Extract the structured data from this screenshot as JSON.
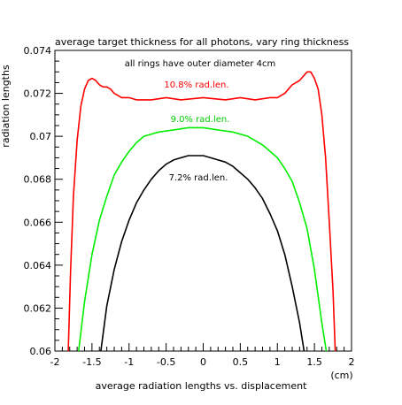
{
  "chart_data": {
    "type": "line",
    "title": "average target thickness for all photons, vary ring thickness",
    "xlabel": "average radiation lengths vs. displacement",
    "ylabel": "radiation lengths",
    "x_unit": "(cm)",
    "xlim": [
      -2,
      2
    ],
    "ylim": [
      0.06,
      0.074
    ],
    "x_ticks": [
      "-2",
      "-1.5",
      "-1",
      "-0.5",
      "0",
      "0.5",
      "1",
      "1.5",
      "2"
    ],
    "y_ticks": [
      "0.06",
      "0.062",
      "0.064",
      "0.066",
      "0.068",
      "0.07",
      "0.072",
      "0.074"
    ],
    "grid": false,
    "annotations": [
      "all rings have outer diameter 4cm"
    ],
    "series": [
      {
        "name": "10.8% rad.len.",
        "color": "#ff0000",
        "points": [
          [
            -1.82,
            0.06
          ],
          [
            -1.79,
            0.0636
          ],
          [
            -1.75,
            0.0672
          ],
          [
            -1.7,
            0.0698
          ],
          [
            -1.65,
            0.0714
          ],
          [
            -1.6,
            0.0722
          ],
          [
            -1.55,
            0.0726
          ],
          [
            -1.5,
            0.0727
          ],
          [
            -1.45,
            0.0726
          ],
          [
            -1.4,
            0.0724
          ],
          [
            -1.35,
            0.0723
          ],
          [
            -1.3,
            0.0723
          ],
          [
            -1.25,
            0.0722
          ],
          [
            -1.2,
            0.072
          ],
          [
            -1.1,
            0.0718
          ],
          [
            -1.0,
            0.0718
          ],
          [
            -0.9,
            0.0717
          ],
          [
            -0.7,
            0.0717
          ],
          [
            -0.5,
            0.0718
          ],
          [
            -0.3,
            0.0717
          ],
          [
            0.0,
            0.0718
          ],
          [
            0.3,
            0.0717
          ],
          [
            0.5,
            0.0718
          ],
          [
            0.7,
            0.0717
          ],
          [
            0.9,
            0.0718
          ],
          [
            1.0,
            0.0718
          ],
          [
            1.1,
            0.072
          ],
          [
            1.15,
            0.0722
          ],
          [
            1.2,
            0.0724
          ],
          [
            1.25,
            0.0725
          ],
          [
            1.3,
            0.0726
          ],
          [
            1.35,
            0.0728
          ],
          [
            1.4,
            0.073
          ],
          [
            1.45,
            0.073
          ],
          [
            1.5,
            0.0727
          ],
          [
            1.55,
            0.0722
          ],
          [
            1.6,
            0.071
          ],
          [
            1.65,
            0.069
          ],
          [
            1.7,
            0.066
          ],
          [
            1.75,
            0.0628
          ],
          [
            1.78,
            0.06
          ]
        ]
      },
      {
        "name": "9.0% rad.len.",
        "color": "#00ee00",
        "points": [
          [
            -1.68,
            0.06
          ],
          [
            -1.6,
            0.0623
          ],
          [
            -1.5,
            0.0645
          ],
          [
            -1.4,
            0.0661
          ],
          [
            -1.3,
            0.0672
          ],
          [
            -1.2,
            0.0682
          ],
          [
            -1.1,
            0.0688
          ],
          [
            -1.0,
            0.0693
          ],
          [
            -0.9,
            0.0697
          ],
          [
            -0.8,
            0.07
          ],
          [
            -0.6,
            0.0702
          ],
          [
            -0.4,
            0.0703
          ],
          [
            -0.2,
            0.0704
          ],
          [
            0.0,
            0.0704
          ],
          [
            0.2,
            0.0703
          ],
          [
            0.4,
            0.0702
          ],
          [
            0.6,
            0.07
          ],
          [
            0.8,
            0.0696
          ],
          [
            1.0,
            0.069
          ],
          [
            1.1,
            0.0685
          ],
          [
            1.2,
            0.0679
          ],
          [
            1.3,
            0.0669
          ],
          [
            1.4,
            0.0657
          ],
          [
            1.5,
            0.0638
          ],
          [
            1.6,
            0.0613
          ],
          [
            1.66,
            0.06
          ]
        ]
      },
      {
        "name": "7.2% rad.len.",
        "color": "#000000",
        "points": [
          [
            -1.38,
            0.06
          ],
          [
            -1.3,
            0.0621
          ],
          [
            -1.2,
            0.0638
          ],
          [
            -1.1,
            0.0651
          ],
          [
            -1.0,
            0.0661
          ],
          [
            -0.9,
            0.0669
          ],
          [
            -0.8,
            0.0675
          ],
          [
            -0.7,
            0.068
          ],
          [
            -0.6,
            0.0684
          ],
          [
            -0.5,
            0.0687
          ],
          [
            -0.4,
            0.0689
          ],
          [
            -0.3,
            0.069
          ],
          [
            -0.2,
            0.0691
          ],
          [
            -0.1,
            0.0691
          ],
          [
            0.0,
            0.0691
          ],
          [
            0.1,
            0.069
          ],
          [
            0.2,
            0.0689
          ],
          [
            0.3,
            0.0688
          ],
          [
            0.4,
            0.0686
          ],
          [
            0.5,
            0.0683
          ],
          [
            0.6,
            0.068
          ],
          [
            0.7,
            0.0676
          ],
          [
            0.8,
            0.0671
          ],
          [
            0.9,
            0.0664
          ],
          [
            1.0,
            0.0656
          ],
          [
            1.1,
            0.0645
          ],
          [
            1.2,
            0.063
          ],
          [
            1.3,
            0.0613
          ],
          [
            1.36,
            0.06
          ]
        ]
      }
    ]
  }
}
